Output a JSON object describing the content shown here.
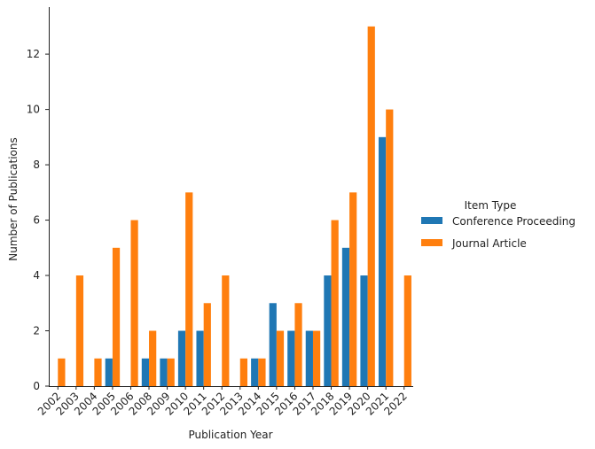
{
  "chart_data": {
    "type": "bar",
    "title": "",
    "xlabel": "Publication Year",
    "ylabel": "Number of Publications",
    "ylim": [
      0,
      13.7
    ],
    "yticks": [
      0,
      2,
      4,
      6,
      8,
      10,
      12
    ],
    "grid": false,
    "legend": {
      "title": "Item Type",
      "placement": "right"
    },
    "categories": [
      "2002",
      "2003",
      "2004",
      "2005",
      "2006",
      "2008",
      "2009",
      "2010",
      "2011",
      "2012",
      "2013",
      "2014",
      "2015",
      "2016",
      "2017",
      "2018",
      "2019",
      "2020",
      "2021",
      "2022"
    ],
    "series": [
      {
        "name": "Conference Proceeding",
        "color": "#1f77b4",
        "values": [
          0,
          0,
          0,
          1,
          0,
          1,
          1,
          2,
          2,
          0,
          0,
          1,
          3,
          2,
          2,
          4,
          5,
          4,
          9,
          0
        ]
      },
      {
        "name": "Journal Article",
        "color": "#ff7f0e",
        "values": [
          1,
          4,
          1,
          5,
          6,
          2,
          1,
          7,
          3,
          4,
          1,
          1,
          2,
          3,
          2,
          6,
          7,
          13,
          10,
          4
        ]
      }
    ]
  }
}
